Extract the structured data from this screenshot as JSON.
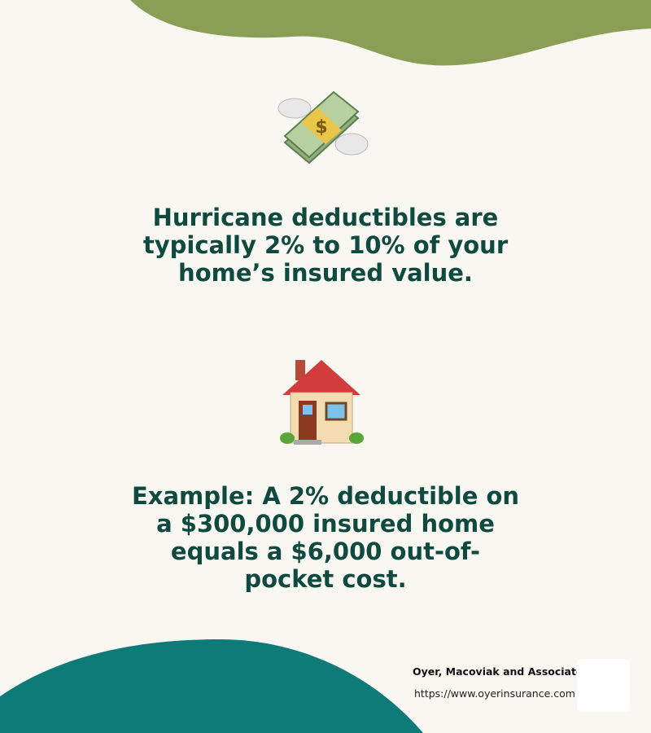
{
  "headline_1": [
    "Hurricane deductibles are",
    "typically 2% to 10% of your",
    "home’s insured value."
  ],
  "headline_2": [
    "Example: A 2% deductible on",
    "a $300,000 insured home",
    "equals a $6,000 out-of-",
    "pocket cost."
  ],
  "footer": {
    "company": "Oyer, Macoviak and Associates",
    "url": "https://www.oyerinsurance.com"
  },
  "icons": [
    "money-with-wings-icon",
    "house-icon"
  ],
  "colors": {
    "background": "#f9f7f1",
    "top_blob": "#8a9f55",
    "bottom_blob": "#0f7b78",
    "text": "#0f4a40"
  }
}
